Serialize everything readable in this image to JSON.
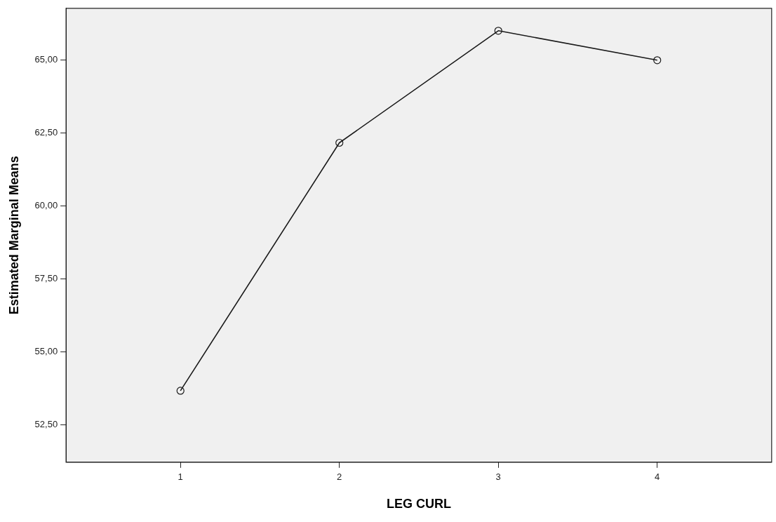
{
  "chart_data": {
    "type": "line",
    "xlabel": "LEG CURL",
    "ylabel": "Estimated Marginal Means",
    "x": [
      1,
      2,
      3,
      4
    ],
    "series": [
      {
        "color": "#1a1a1a",
        "values": [
          53.67,
          62.17,
          66.01,
          65.0
        ]
      }
    ],
    "xlim": [
      0.28,
      4.72
    ],
    "xticks": [
      1,
      2,
      3,
      4
    ],
    "ylim": [
      51.22,
      66.78
    ],
    "yticks": [
      {
        "value": 52.5,
        "label": "52,50"
      },
      {
        "value": 55,
        "label": "55,00"
      },
      {
        "value": 57.5,
        "label": "57,50"
      },
      {
        "value": 60,
        "label": "60,00"
      },
      {
        "value": 62.5,
        "label": "62,50"
      },
      {
        "value": 65,
        "label": "65,00"
      }
    ],
    "grid": false,
    "legend": false,
    "marker": "circle",
    "line_style": "solid"
  }
}
